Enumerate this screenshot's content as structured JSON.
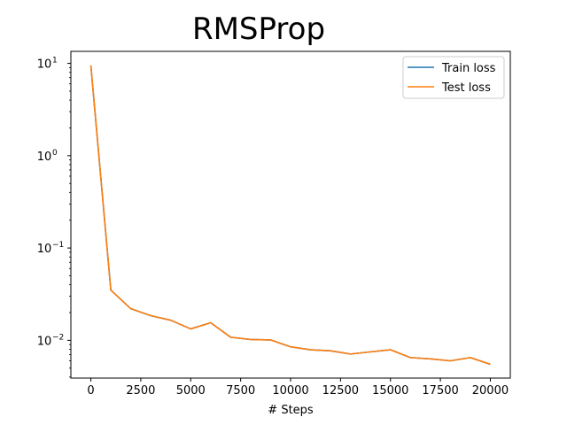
{
  "chart_data": {
    "type": "line",
    "title": "RMSProp",
    "xlabel": "# Steps",
    "ylabel": "",
    "yscale": "log",
    "xlim": [
      -1000,
      21000
    ],
    "ylim": [
      0.0039,
      13.5
    ],
    "x_ticks": [
      0,
      2500,
      5000,
      7500,
      10000,
      12500,
      15000,
      17500,
      20000
    ],
    "x_tick_labels": [
      "0",
      "2500",
      "5000",
      "7500",
      "10000",
      "12500",
      "15000",
      "17500",
      "20000"
    ],
    "y_ticks": [
      {
        "value": 10,
        "base": "10",
        "exp": "1"
      },
      {
        "value": 1,
        "base": "10",
        "exp": "0"
      },
      {
        "value": 0.1,
        "base": "10",
        "exp": "−1"
      },
      {
        "value": 0.01,
        "base": "10",
        "exp": "−2"
      }
    ],
    "legend_position": "top-right",
    "x": [
      0,
      1000,
      2000,
      3000,
      4000,
      5000,
      6000,
      7000,
      8000,
      9000,
      10000,
      11000,
      12000,
      13000,
      14000,
      15000,
      16000,
      17000,
      18000,
      19000,
      20000
    ],
    "series": [
      {
        "name": "Train loss",
        "color": "#1f77b4",
        "values": [
          9.5,
          0.035,
          0.022,
          0.0185,
          0.0165,
          0.0133,
          0.0155,
          0.0108,
          0.0102,
          0.0101,
          0.0085,
          0.0079,
          0.0077,
          0.0071,
          0.0075,
          0.0079,
          0.0065,
          0.0063,
          0.006,
          0.0065,
          0.0055
        ]
      },
      {
        "name": "Test loss",
        "color": "#ff7f0e",
        "values": [
          9.5,
          0.035,
          0.022,
          0.0185,
          0.0165,
          0.0133,
          0.0155,
          0.0108,
          0.0102,
          0.0101,
          0.0085,
          0.0079,
          0.0077,
          0.0071,
          0.0075,
          0.0079,
          0.0065,
          0.0063,
          0.006,
          0.0065,
          0.0055
        ]
      }
    ]
  }
}
